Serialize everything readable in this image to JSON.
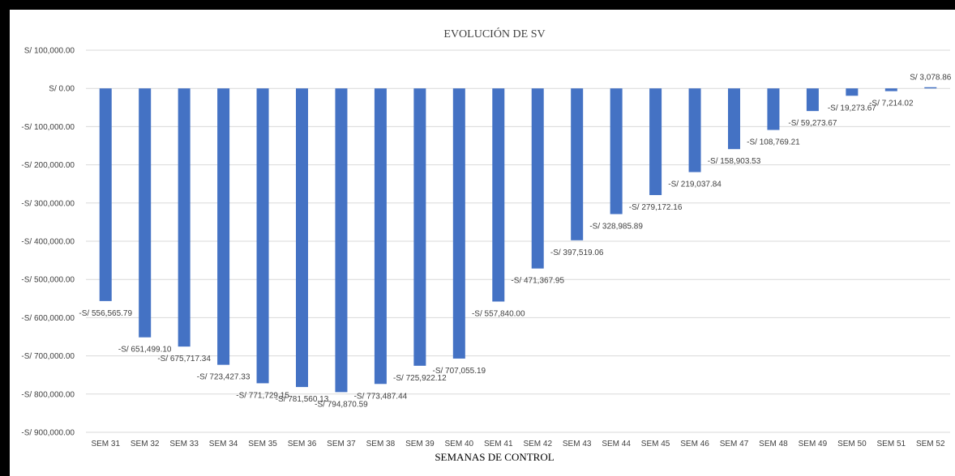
{
  "chart_data": {
    "type": "bar",
    "title": "EVOLUCIÓN DE SV",
    "xlabel": "SEMANAS DE CONTROL",
    "ylabel": "",
    "ylim": [
      -900000,
      100000
    ],
    "grid": true,
    "legend": "none",
    "y_ticks": [
      100000,
      0,
      -100000,
      -200000,
      -300000,
      -400000,
      -500000,
      -600000,
      -700000,
      -800000,
      -900000
    ],
    "y_tick_labels": [
      "S/ 100,000.00",
      "S/ 0.00",
      "-S/ 100,000.00",
      "-S/ 200,000.00",
      "-S/ 300,000.00",
      "-S/ 400,000.00",
      "-S/ 500,000.00",
      "-S/ 600,000.00",
      "-S/ 700,000.00",
      "-S/ 800,000.00",
      "-S/ 900,000.00"
    ],
    "categories": [
      "SEM 31",
      "SEM 32",
      "SEM 33",
      "SEM 34",
      "SEM 35",
      "SEM 36",
      "SEM 37",
      "SEM 38",
      "SEM 39",
      "SEM 40",
      "SEM 41",
      "SEM 42",
      "SEM 43",
      "SEM 44",
      "SEM 45",
      "SEM 46",
      "SEM 47",
      "SEM 48",
      "SEM 49",
      "SEM 50",
      "SEM 51",
      "SEM 52"
    ],
    "values": [
      -556565.79,
      -651499.1,
      -675717.34,
      -723427.33,
      -771729.15,
      -781560.13,
      -794870.59,
      -773487.44,
      -725922.12,
      -707055.19,
      -557840.0,
      -471367.95,
      -397519.06,
      -328985.89,
      -279172.16,
      -219037.84,
      -158903.53,
      -108769.21,
      -59273.67,
      -19273.67,
      -7214.02,
      3078.86
    ],
    "data_labels": [
      "-S/ 556,565.79",
      "-S/ 651,499.10",
      "-S/ 675,717.34",
      "-S/ 723,427.33",
      "-S/ 771,729.15",
      "-S/ 781,560.13",
      "-S/ 794,870.59",
      "-S/ 773,487.44",
      "-S/ 725,922.12",
      "-S/ 707,055.19",
      "-S/ 557,840.00",
      "-S/ 471,367.95",
      "-S/ 397,519.06",
      "-S/ 328,985.89",
      "-S/ 279,172.16",
      "-S/ 219,037.84",
      "-S/ 158,903.53",
      "-S/ 108,769.21",
      "-S/ 59,273.67",
      "-S/ 19,273.67",
      "-S/ 7,214.02",
      "S/ 3,078.86"
    ],
    "colors": {
      "bar": "#4472c4",
      "grid": "#d9d9d9",
      "text": "#404040"
    }
  }
}
